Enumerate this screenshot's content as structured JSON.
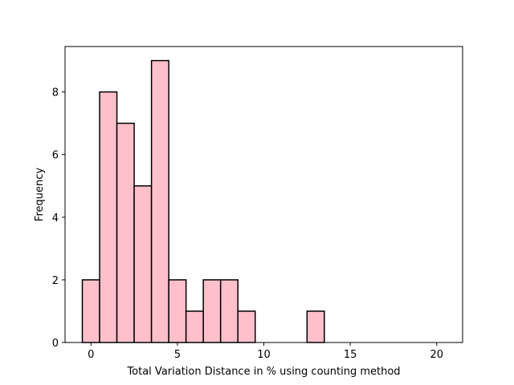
{
  "chart_data": {
    "type": "bar",
    "histogram": true,
    "xlabel": "Total Variation Distance in % using counting method",
    "ylabel": "Frequency",
    "xlim": [
      -1.5,
      21.5
    ],
    "ylim": [
      0,
      9.45
    ],
    "bin_edges": [
      -0.5,
      0.5,
      1.5,
      2.5,
      3.5,
      4.5,
      5.5,
      6.5,
      7.5,
      8.5,
      9.5,
      10.5,
      11.5,
      12.5,
      13.5,
      14.5,
      15.5,
      16.5,
      17.5,
      18.5,
      19.5,
      20.5
    ],
    "values": [
      2,
      8,
      7,
      5,
      9,
      2,
      1,
      2,
      2,
      1,
      0,
      0,
      0,
      1,
      0,
      0,
      0,
      0,
      0,
      0,
      0
    ],
    "x_ticks": [
      0,
      5,
      10,
      15,
      20
    ],
    "y_ticks": [
      0,
      2,
      4,
      6,
      8
    ],
    "bar_fill": "#ffc0cb",
    "bar_edge": "#000000",
    "grid": false
  }
}
